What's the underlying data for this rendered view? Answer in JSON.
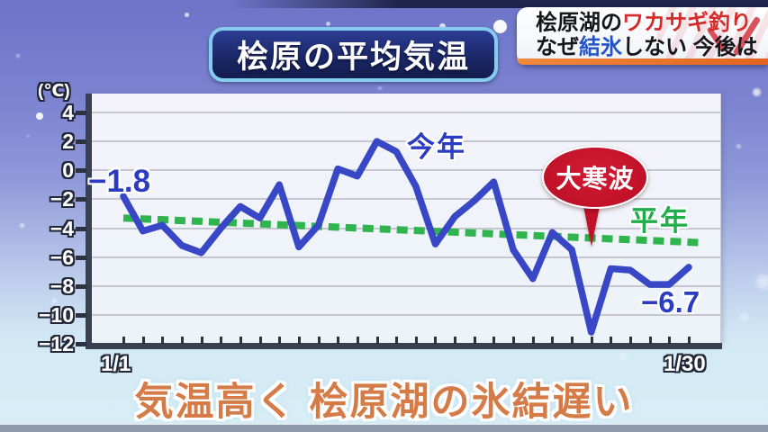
{
  "banner": {
    "line1_prefix": "桧原湖の",
    "line1_highlight": "ワカサギ釣り",
    "line2_prefix": "なぜ",
    "line2_highlight": "結氷",
    "line2_suffix": "しない 今後は"
  },
  "caption": {
    "text": "気温高く 桧原湖の氷結遅い"
  },
  "chart_data": {
    "type": "line",
    "title": "桧原の平均気温",
    "y_axis": {
      "unit": "(℃)",
      "range": [
        -12,
        4
      ],
      "ticks": [
        {
          "v": 4,
          "label": "4"
        },
        {
          "v": 2,
          "label": "2"
        },
        {
          "v": 0,
          "label": "0"
        },
        {
          "v": -2,
          "label": "−2"
        },
        {
          "v": -4,
          "label": "−4"
        },
        {
          "v": -6,
          "label": "−6"
        },
        {
          "v": -8,
          "label": "−8"
        },
        {
          "v": -10,
          "label": "−10"
        },
        {
          "v": -12,
          "label": "−12"
        }
      ]
    },
    "x_axis": {
      "days": 30,
      "start_label": "1/1",
      "end_label": "1/30"
    },
    "series": [
      {
        "name": "今年",
        "color": "#3747c5",
        "style": "solid",
        "values": [
          -1.8,
          -4.2,
          -3.8,
          -5.2,
          -5.7,
          -4.0,
          -2.5,
          -3.3,
          -1.0,
          -5.3,
          -3.8,
          0.1,
          -0.4,
          2.0,
          1.3,
          -1.1,
          -5.1,
          -3.2,
          -2.1,
          -0.8,
          -5.5,
          -7.5,
          -4.3,
          -5.5,
          -11.2,
          -6.8,
          -6.9,
          -7.9,
          -7.9,
          -6.7
        ]
      },
      {
        "name": "平年",
        "color": "#2fb44e",
        "style": "dashed",
        "start_value": -3.3,
        "end_value": -5.0
      }
    ],
    "annotations": {
      "first_value_label": "−1.8",
      "last_value_label": "−6.7",
      "cold_wave_callout": "大寒波",
      "this_year_label": "今年",
      "normal_year_label": "平年"
    },
    "grid": true,
    "legend_position": "inline-labels"
  }
}
